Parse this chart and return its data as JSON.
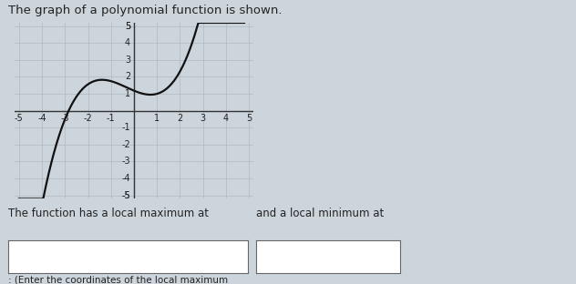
{
  "title": "The graph of a polynomial function is shown.",
  "xlim": [
    -5.2,
    5.2
  ],
  "ylim": [
    -5.2,
    5.2
  ],
  "xticks": [
    -5,
    -4,
    -3,
    -2,
    -1,
    1,
    2,
    3,
    4,
    5
  ],
  "yticks": [
    -5,
    -4,
    -3,
    -2,
    -1,
    1,
    2,
    3,
    4,
    5
  ],
  "curve_color": "#111111",
  "curve_linewidth": 1.6,
  "grid_color": "#b0b8c0",
  "grid_linewidth": 0.5,
  "axis_color": "#333333",
  "axis_linewidth": 1.0,
  "bg_color": "#cdd5dc",
  "plot_bg_color": "#cdd5dc",
  "text_color": "#222222",
  "title_fontsize": 9.5,
  "tick_fontsize": 7.0,
  "bottom_text1": "The function has a local maximum at",
  "bottom_text2": "and a local minimum at",
  "bottom_text3": ": (Enter the coordinates of the local maximum",
  "poly_a": 0.1875,
  "poly_C": 1.1875,
  "x_start": -5.0,
  "x_end": 4.8
}
